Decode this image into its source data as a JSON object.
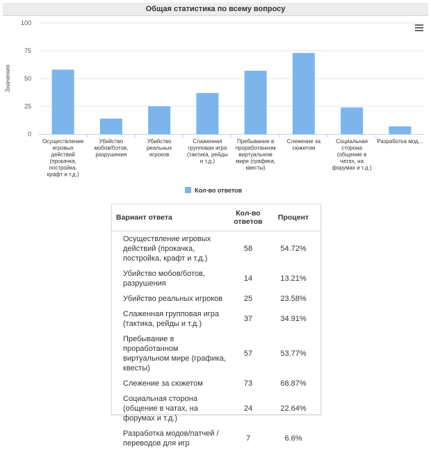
{
  "title": "Общая статистика по всему вопросу",
  "chart_data": {
    "type": "bar",
    "title": "Общая статистика по всему вопросу",
    "ylabel": "Значения",
    "xlabel": "",
    "ylim": [
      0,
      100
    ],
    "yticks": [
      0,
      25,
      50,
      75,
      100
    ],
    "grid": true,
    "legend": "bottom-center",
    "categories": [
      [
        "Осуществление",
        "игровых",
        "действий",
        "(прокачка,",
        "постройка,",
        "крафт и т.д.)"
      ],
      [
        "Убийство",
        "мобов/ботов,",
        "разрушения"
      ],
      [
        "Убийство",
        "реальных",
        "игроков"
      ],
      [
        "Слаженная",
        "групповая игра",
        "(тактика, рейды",
        "и т.д.)"
      ],
      [
        "Пребывание в",
        "проработанном",
        "виртуальном",
        "мире (графика,",
        "квесты)"
      ],
      [
        "Слежение за",
        "сюжетом"
      ],
      [
        "Социальная",
        "сторона",
        "(общение в",
        "чатах, на",
        "форумах и т.д.)"
      ],
      [
        "Разработка мод..."
      ]
    ],
    "series": [
      {
        "name": "Кол-во ответов",
        "color": "#7cb5ec",
        "values": [
          58,
          14,
          25,
          37,
          57,
          73,
          24,
          7
        ]
      }
    ]
  },
  "table": {
    "headers": [
      "Вариант ответа",
      "Кол-во ответов",
      "Процент"
    ],
    "rows": [
      [
        "Осуществление игровых действий (прокачка, постройка, крафт и т.д.)",
        "58",
        "54.72%"
      ],
      [
        "Убийство мобов/ботов, разрушения",
        "14",
        "13.21%"
      ],
      [
        "Убийство реальных игроков",
        "25",
        "23.58%"
      ],
      [
        "Слаженная групповая игра (тактика, рейды и т.д.)",
        "37",
        "34.91%"
      ],
      [
        "Пребывание в проработанном виртуальном мире (графика, квесты)",
        "57",
        "53.77%"
      ],
      [
        "Слежение за сюжетом",
        "73",
        "68.87%"
      ],
      [
        "Социальная сторона (общение в чатах, на форумах и т.д.)",
        "24",
        "22.64%"
      ],
      [
        "Разработка модов/патчей /переводов для игр",
        "7",
        "6.6%"
      ]
    ]
  },
  "icons": {
    "menu": "hamburger-menu-icon"
  }
}
